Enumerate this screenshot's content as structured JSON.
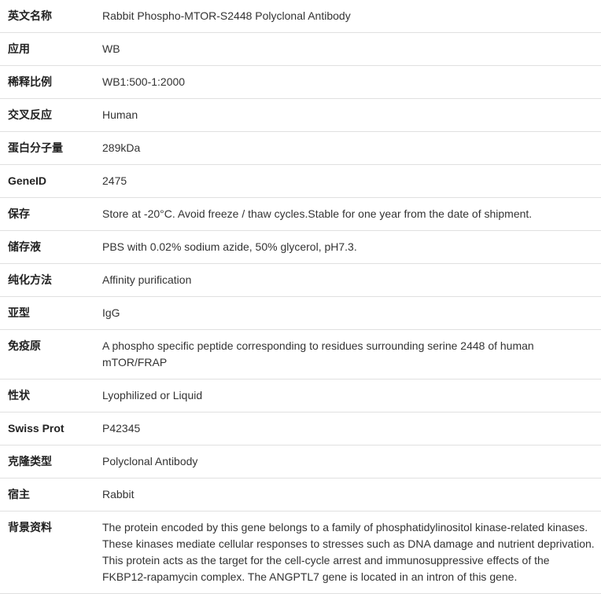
{
  "rows": [
    {
      "label": "英文名称",
      "value": "Rabbit Phospho-MTOR-S2448 Polyclonal Antibody"
    },
    {
      "label": "应用",
      "value": "WB"
    },
    {
      "label": "稀释比例",
      "value": "WB1:500-1:2000"
    },
    {
      "label": "交叉反应",
      "value": "Human"
    },
    {
      "label": "蛋白分子量",
      "value": "289kDa"
    },
    {
      "label": "GeneID",
      "value": "2475"
    },
    {
      "label": "保存",
      "value": "Store at -20°C. Avoid freeze / thaw cycles.Stable for one year from the date of shipment."
    },
    {
      "label": "储存液",
      "value": "PBS with 0.02% sodium azide, 50% glycerol, pH7.3."
    },
    {
      "label": "纯化方法",
      "value": "Affinity purification"
    },
    {
      "label": "亚型",
      "value": "IgG"
    },
    {
      "label": "免疫原",
      "value": "A phospho specific peptide corresponding to residues surrounding serine 2448 of human mTOR/FRAP"
    },
    {
      "label": "性状",
      "value": "Lyophilized or Liquid"
    },
    {
      "label": "Swiss Prot",
      "value": "P42345"
    },
    {
      "label": "克隆类型",
      "value": "Polyclonal Antibody"
    },
    {
      "label": "宿主",
      "value": "Rabbit"
    },
    {
      "label": "背景资料",
      "value": "The protein encoded by this gene belongs to a family of phosphatidylinositol kinase-related kinases. These kinases mediate cellular responses to stresses such as DNA damage and nutrient deprivation. This protein acts as the target for the cell-cycle arrest and immunosuppressive effects of the FKBP12-rapamycin complex. The ANGPTL7 gene is located in an intron of this gene."
    }
  ]
}
